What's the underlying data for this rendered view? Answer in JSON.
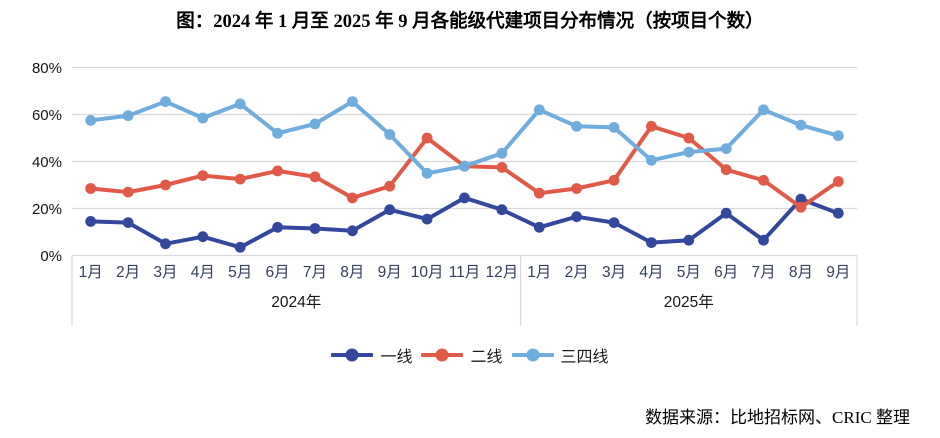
{
  "title": "图：2024 年 1 月至 2025 年 9 月各能级代建项目分布情况（按项目个数）",
  "source_note": "数据来源：比地招标网、CRIC 整理",
  "chart_data": {
    "type": "line",
    "title": "图：2024 年 1 月至 2025 年 9 月各能级代建项目分布情况（按项目个数）",
    "x_groups": [
      {
        "year_label": "2024年",
        "months": [
          "1月",
          "2月",
          "3月",
          "4月",
          "5月",
          "6月",
          "7月",
          "8月",
          "9月",
          "10月",
          "11月",
          "12月"
        ]
      },
      {
        "year_label": "2025年",
        "months": [
          "1月",
          "2月",
          "3月",
          "4月",
          "5月",
          "6月",
          "7月",
          "8月",
          "9月"
        ]
      }
    ],
    "ylim": [
      0,
      80
    ],
    "yticks": [
      {
        "value": 0,
        "label": "0%"
      },
      {
        "value": 20,
        "label": "20%"
      },
      {
        "value": 40,
        "label": "40%"
      },
      {
        "value": 60,
        "label": "60%"
      },
      {
        "value": 80,
        "label": "80%"
      }
    ],
    "grid": true,
    "legend_position": "bottom",
    "series": [
      {
        "name": "一线",
        "slug": "tier-1",
        "color": "#33489c",
        "values": [
          14.5,
          14,
          5,
          8,
          3.5,
          12,
          11.5,
          10.5,
          19.5,
          15.5,
          24.5,
          19.5,
          12,
          16.5,
          14,
          5.5,
          6.5,
          18,
          6.5,
          24,
          18
        ]
      },
      {
        "name": "二线",
        "slug": "tier-2",
        "color": "#e05a47",
        "values": [
          28.5,
          27,
          30,
          34,
          32.5,
          36,
          33.5,
          24.5,
          29.5,
          50,
          38,
          37.5,
          26.5,
          28.5,
          32,
          55,
          50,
          36.5,
          32,
          20.5,
          31.5
        ]
      },
      {
        "name": "三四线",
        "slug": "tier-3-4",
        "color": "#6fadde",
        "values": [
          57.5,
          59.5,
          65.5,
          58.5,
          64.5,
          52,
          56,
          65.5,
          51.5,
          35,
          38,
          43.5,
          62,
          55,
          54.5,
          40.5,
          44,
          45.5,
          62,
          55.5,
          51
        ]
      }
    ],
    "colors": {
      "grid": "#d9d9d9",
      "tier1": "#33489c",
      "tier2": "#e05a47",
      "tier3_4": "#6fadde"
    }
  }
}
